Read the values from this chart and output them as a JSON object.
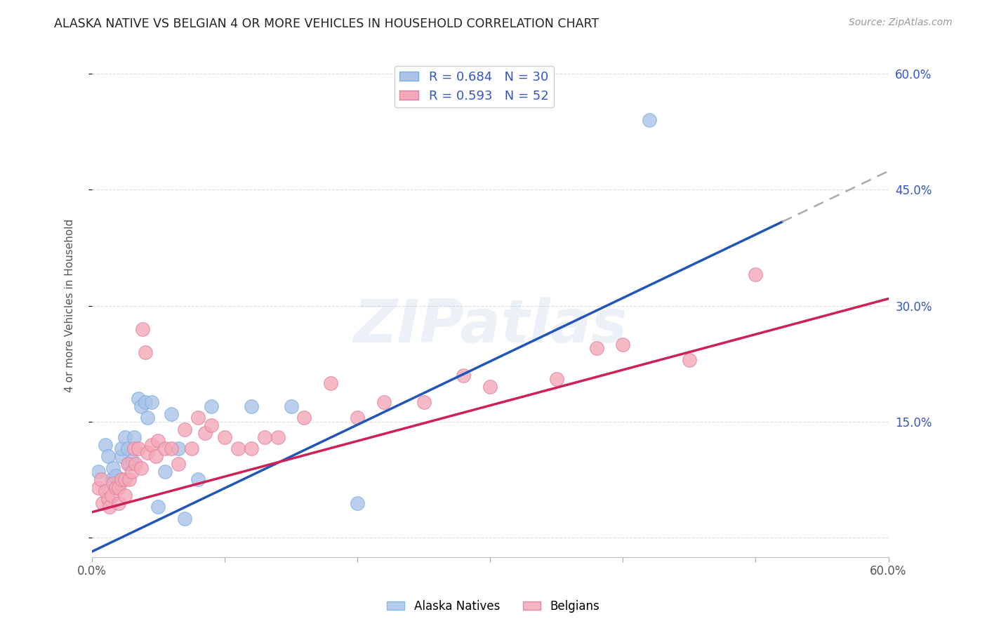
{
  "title": "ALASKA NATIVE VS BELGIAN 4 OR MORE VEHICLES IN HOUSEHOLD CORRELATION CHART",
  "source": "Source: ZipAtlas.com",
  "ylabel": "4 or more Vehicles in Household",
  "xlim": [
    0,
    0.6
  ],
  "ylim": [
    -0.025,
    0.625
  ],
  "grid_color": "#dddddd",
  "background_color": "#ffffff",
  "blue_color": "#aac4e8",
  "pink_color": "#f4a8b8",
  "blue_line_color": "#2255bb",
  "pink_line_color": "#cc2255",
  "blue_R": 0.684,
  "blue_N": 30,
  "pink_R": 0.593,
  "pink_N": 52,
  "watermark": "ZIPatlas",
  "blue_line_x0": 0.0,
  "blue_line_y0": -0.018,
  "blue_line_slope": 0.82,
  "blue_line_solid_end": 0.52,
  "pink_line_x0": 0.0,
  "pink_line_y0": 0.033,
  "pink_line_slope": 0.46,
  "alaska_x": [
    0.005,
    0.01,
    0.012,
    0.015,
    0.016,
    0.018,
    0.02,
    0.022,
    0.022,
    0.025,
    0.027,
    0.028,
    0.03,
    0.032,
    0.035,
    0.037,
    0.04,
    0.042,
    0.045,
    0.05,
    0.055,
    0.06,
    0.065,
    0.07,
    0.08,
    0.09,
    0.12,
    0.15,
    0.2,
    0.42
  ],
  "alaska_y": [
    0.085,
    0.12,
    0.105,
    0.075,
    0.09,
    0.08,
    0.07,
    0.105,
    0.115,
    0.13,
    0.115,
    0.095,
    0.1,
    0.13,
    0.18,
    0.17,
    0.175,
    0.155,
    0.175,
    0.04,
    0.085,
    0.16,
    0.115,
    0.025,
    0.075,
    0.17,
    0.17,
    0.17,
    0.045,
    0.54
  ],
  "belgian_x": [
    0.005,
    0.007,
    0.008,
    0.01,
    0.012,
    0.013,
    0.015,
    0.016,
    0.018,
    0.02,
    0.02,
    0.022,
    0.025,
    0.025,
    0.027,
    0.028,
    0.03,
    0.032,
    0.033,
    0.035,
    0.037,
    0.038,
    0.04,
    0.042,
    0.045,
    0.048,
    0.05,
    0.055,
    0.06,
    0.065,
    0.07,
    0.075,
    0.08,
    0.085,
    0.09,
    0.1,
    0.11,
    0.12,
    0.13,
    0.14,
    0.16,
    0.18,
    0.2,
    0.22,
    0.25,
    0.28,
    0.3,
    0.35,
    0.38,
    0.4,
    0.45,
    0.5
  ],
  "belgian_y": [
    0.065,
    0.075,
    0.045,
    0.06,
    0.05,
    0.04,
    0.055,
    0.07,
    0.065,
    0.065,
    0.045,
    0.075,
    0.075,
    0.055,
    0.095,
    0.075,
    0.085,
    0.115,
    0.095,
    0.115,
    0.09,
    0.27,
    0.24,
    0.11,
    0.12,
    0.105,
    0.125,
    0.115,
    0.115,
    0.095,
    0.14,
    0.115,
    0.155,
    0.135,
    0.145,
    0.13,
    0.115,
    0.115,
    0.13,
    0.13,
    0.155,
    0.2,
    0.155,
    0.175,
    0.175,
    0.21,
    0.195,
    0.205,
    0.245,
    0.25,
    0.23,
    0.34
  ]
}
